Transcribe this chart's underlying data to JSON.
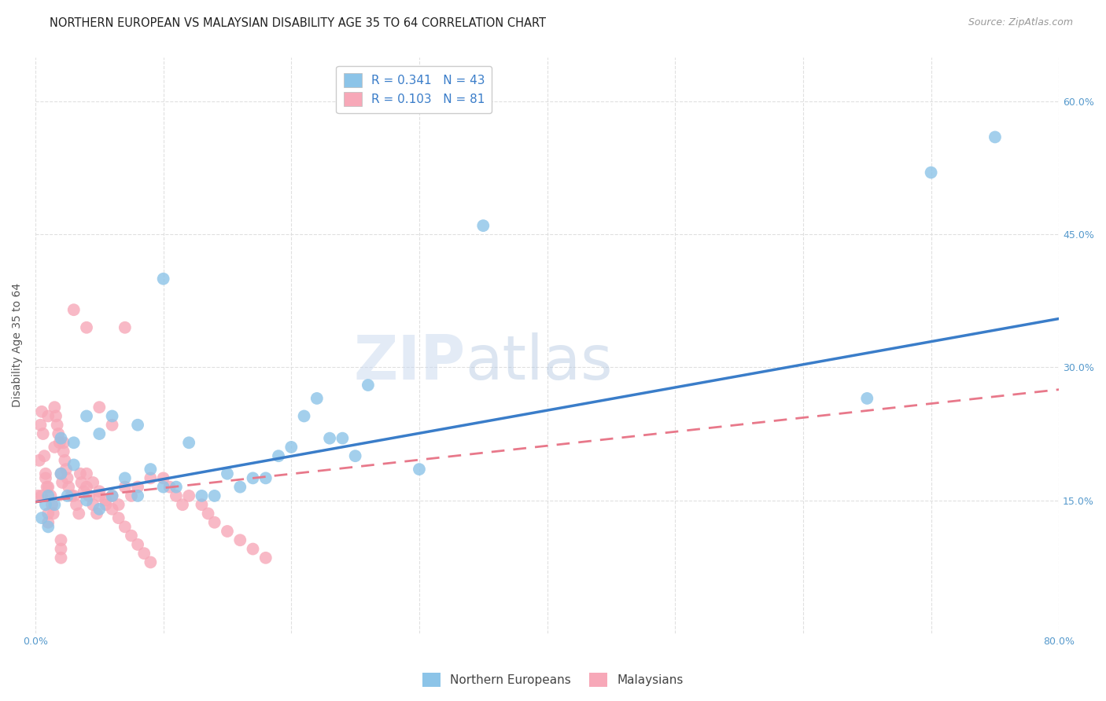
{
  "title": "NORTHERN EUROPEAN VS MALAYSIAN DISABILITY AGE 35 TO 64 CORRELATION CHART",
  "source": "Source: ZipAtlas.com",
  "ylabel": "Disability Age 35 to 64",
  "xmin": 0.0,
  "xmax": 0.8,
  "ymin": 0.0,
  "ymax": 0.65,
  "xticks": [
    0.0,
    0.1,
    0.2,
    0.3,
    0.4,
    0.5,
    0.6,
    0.7,
    0.8
  ],
  "xtick_labels": [
    "0.0%",
    "",
    "",
    "",
    "",
    "",
    "",
    "",
    "80.0%"
  ],
  "ytick_positions": [
    0.15,
    0.3,
    0.45,
    0.6
  ],
  "ytick_labels": [
    "15.0%",
    "30.0%",
    "45.0%",
    "60.0%"
  ],
  "blue_R": "0.341",
  "blue_N": "43",
  "pink_R": "0.103",
  "pink_N": "81",
  "blue_color": "#8cc4e8",
  "pink_color": "#f7a8b8",
  "blue_line_color": "#3a7dc9",
  "pink_line_color": "#e8788a",
  "legend_text_color": "#3a7dc9",
  "axis_color": "#5599cc",
  "grid_color": "#dddddd",
  "blue_scatter_x": [
    0.005,
    0.008,
    0.01,
    0.01,
    0.015,
    0.02,
    0.02,
    0.025,
    0.03,
    0.03,
    0.04,
    0.04,
    0.05,
    0.05,
    0.06,
    0.06,
    0.07,
    0.08,
    0.08,
    0.09,
    0.1,
    0.1,
    0.11,
    0.12,
    0.13,
    0.14,
    0.15,
    0.16,
    0.17,
    0.18,
    0.19,
    0.2,
    0.21,
    0.22,
    0.23,
    0.24,
    0.25,
    0.26,
    0.3,
    0.35,
    0.65,
    0.7,
    0.75
  ],
  "blue_scatter_y": [
    0.13,
    0.145,
    0.12,
    0.155,
    0.145,
    0.18,
    0.22,
    0.155,
    0.215,
    0.19,
    0.15,
    0.245,
    0.14,
    0.225,
    0.155,
    0.245,
    0.175,
    0.155,
    0.235,
    0.185,
    0.165,
    0.4,
    0.165,
    0.215,
    0.155,
    0.155,
    0.18,
    0.165,
    0.175,
    0.175,
    0.2,
    0.21,
    0.245,
    0.265,
    0.22,
    0.22,
    0.2,
    0.28,
    0.185,
    0.46,
    0.265,
    0.52,
    0.56
  ],
  "pink_scatter_x": [
    0.002,
    0.003,
    0.004,
    0.005,
    0.005,
    0.006,
    0.007,
    0.008,
    0.008,
    0.009,
    0.01,
    0.01,
    0.012,
    0.013,
    0.014,
    0.015,
    0.015,
    0.016,
    0.017,
    0.018,
    0.019,
    0.02,
    0.021,
    0.022,
    0.022,
    0.023,
    0.024,
    0.025,
    0.026,
    0.028,
    0.03,
    0.032,
    0.034,
    0.035,
    0.036,
    0.038,
    0.04,
    0.042,
    0.045,
    0.048,
    0.05,
    0.055,
    0.06,
    0.065,
    0.07,
    0.075,
    0.08,
    0.09,
    0.1,
    0.105,
    0.11,
    0.115,
    0.12,
    0.13,
    0.135,
    0.14,
    0.15,
    0.16,
    0.17,
    0.18,
    0.01,
    0.01,
    0.02,
    0.02,
    0.02,
    0.03,
    0.04,
    0.05,
    0.06,
    0.07,
    0.04,
    0.045,
    0.05,
    0.055,
    0.06,
    0.065,
    0.07,
    0.075,
    0.08,
    0.085,
    0.09
  ],
  "pink_scatter_y": [
    0.155,
    0.195,
    0.235,
    0.155,
    0.25,
    0.225,
    0.2,
    0.18,
    0.175,
    0.165,
    0.165,
    0.245,
    0.155,
    0.145,
    0.135,
    0.21,
    0.255,
    0.245,
    0.235,
    0.225,
    0.215,
    0.18,
    0.17,
    0.215,
    0.205,
    0.195,
    0.185,
    0.175,
    0.165,
    0.155,
    0.155,
    0.145,
    0.135,
    0.18,
    0.17,
    0.16,
    0.165,
    0.155,
    0.145,
    0.135,
    0.155,
    0.145,
    0.155,
    0.145,
    0.165,
    0.155,
    0.165,
    0.175,
    0.175,
    0.165,
    0.155,
    0.145,
    0.155,
    0.145,
    0.135,
    0.125,
    0.115,
    0.105,
    0.095,
    0.085,
    0.135,
    0.125,
    0.105,
    0.095,
    0.085,
    0.365,
    0.345,
    0.255,
    0.235,
    0.345,
    0.18,
    0.17,
    0.16,
    0.15,
    0.14,
    0.13,
    0.12,
    0.11,
    0.1,
    0.09,
    0.08
  ],
  "blue_line_x0": 0.0,
  "blue_line_x1": 0.8,
  "blue_line_y0": 0.148,
  "blue_line_y1": 0.355,
  "pink_line_x0": 0.0,
  "pink_line_x1": 0.8,
  "pink_line_y0": 0.148,
  "pink_line_y1": 0.275,
  "title_fontsize": 10.5,
  "source_fontsize": 9,
  "axis_label_fontsize": 10,
  "tick_fontsize": 9,
  "legend_fontsize": 11,
  "background_color": "#ffffff",
  "plot_bg_color": "#ffffff"
}
